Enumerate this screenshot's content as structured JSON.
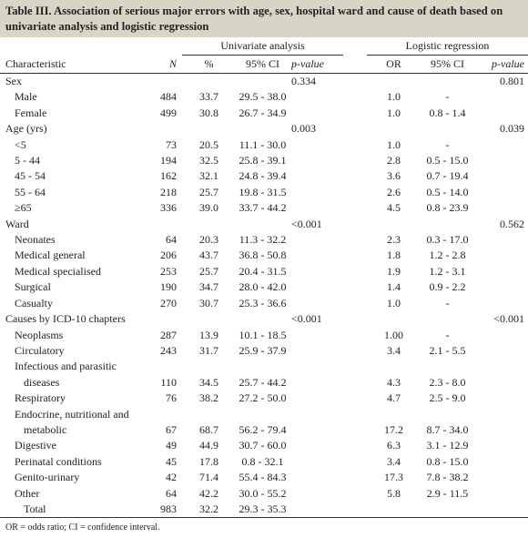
{
  "caption": "Table III. Association of serious major errors with age, sex, hospital ward and cause of death based on univariate analysis and logistic regression",
  "header": {
    "group_univariate": "Univariate analysis",
    "group_logistic": "Logistic regression",
    "characteristic": "Characteristic",
    "n": "N",
    "pct": "%",
    "ci_uni": "95% CI",
    "p_uni": "p-value",
    "or": "OR",
    "ci_log": "95% CI",
    "p_log": "p-value"
  },
  "rows": [
    {
      "label": "Sex",
      "n": "",
      "pct": "",
      "ci": "",
      "p": "0.334",
      "or": "",
      "ci2": "",
      "p2": "0.801"
    },
    {
      "label": "Male",
      "n": "484",
      "pct": "33.7",
      "ci": "29.5 - 38.0",
      "p": "",
      "or": "1.0",
      "ci2": "-",
      "p2": ""
    },
    {
      "label": "Female",
      "n": "499",
      "pct": "30.8",
      "ci": "26.7 - 34.9",
      "p": "",
      "or": "1.0",
      "ci2": "0.8 - 1.4",
      "p2": ""
    },
    {
      "label": "Age (yrs)",
      "n": "",
      "pct": "",
      "ci": "",
      "p": "0.003",
      "or": "",
      "ci2": "",
      "p2": "0.039"
    },
    {
      "label": "<5",
      "n": "73",
      "pct": "20.5",
      "ci": "11.1 - 30.0",
      "p": "",
      "or": "1.0",
      "ci2": "-",
      "p2": ""
    },
    {
      "label": "5 - 44",
      "n": "194",
      "pct": "32.5",
      "ci": "25.8 - 39.1",
      "p": "",
      "or": "2.8",
      "ci2": "0.5 - 15.0",
      "p2": ""
    },
    {
      "label": "45 - 54",
      "n": "162",
      "pct": "32.1",
      "ci": "24.8 - 39.4",
      "p": "",
      "or": "3.6",
      "ci2": "0.7 - 19.4",
      "p2": ""
    },
    {
      "label": "55 - 64",
      "n": "218",
      "pct": "25.7",
      "ci": "19.8 - 31.5",
      "p": "",
      "or": "2.6",
      "ci2": "0.5 - 14.0",
      "p2": ""
    },
    {
      "label": "≥65",
      "n": "336",
      "pct": "39.0",
      "ci": "33.7 - 44.2",
      "p": "",
      "or": "4.5",
      "ci2": "0.8 - 23.9",
      "p2": ""
    },
    {
      "label": "Ward",
      "n": "",
      "pct": "",
      "ci": "",
      "p": "<0.001",
      "or": "",
      "ci2": "",
      "p2": "0.562"
    },
    {
      "label": "Neonates",
      "n": "64",
      "pct": "20.3",
      "ci": "11.3 - 32.2",
      "p": "",
      "or": "2.3",
      "ci2": "0.3 - 17.0",
      "p2": ""
    },
    {
      "label": "Medical general",
      "n": "206",
      "pct": "43.7",
      "ci": "36.8 - 50.8",
      "p": "",
      "or": "1.8",
      "ci2": "1.2 - 2.8",
      "p2": ""
    },
    {
      "label": "Medical specialised",
      "n": "253",
      "pct": "25.7",
      "ci": "20.4 - 31.5",
      "p": "",
      "or": "1.9",
      "ci2": "1.2 - 3.1",
      "p2": ""
    },
    {
      "label": "Surgical",
      "n": "190",
      "pct": "34.7",
      "ci": "28.0 - 42.0",
      "p": "",
      "or": "1.4",
      "ci2": "0.9 - 2.2",
      "p2": ""
    },
    {
      "label": "Casualty",
      "n": "270",
      "pct": "30.7",
      "ci": "25.3 - 36.6",
      "p": "",
      "or": "1.0",
      "ci2": "-",
      "p2": ""
    },
    {
      "label": "Causes by ICD-10 chapters",
      "n": "",
      "pct": "",
      "ci": "",
      "p": "<0.001",
      "or": "",
      "ci2": "",
      "p2": "<0.001"
    },
    {
      "label": "Neoplasms",
      "n": "287",
      "pct": "13.9",
      "ci": "10.1 - 18.5",
      "p": "",
      "or": "1.00",
      "ci2": "-",
      "p2": ""
    },
    {
      "label": "Circulatory",
      "n": "243",
      "pct": "31.7",
      "ci": "25.9 - 37.9",
      "p": "",
      "or": "3.4",
      "ci2": "2.1 - 5.5",
      "p2": ""
    },
    {
      "label": "Infectious and parasitic",
      "n": "",
      "pct": "",
      "ci": "",
      "p": "",
      "or": "",
      "ci2": "",
      "p2": ""
    },
    {
      "label": "diseases",
      "n": "110",
      "pct": "34.5",
      "ci": "25.7 - 44.2",
      "p": "",
      "or": "4.3",
      "ci2": "2.3 - 8.0",
      "p2": ""
    },
    {
      "label": "Respiratory",
      "n": "76",
      "pct": "38.2",
      "ci": "27.2 - 50.0",
      "p": "",
      "or": "4.7",
      "ci2": "2.5 - 9.0",
      "p2": ""
    },
    {
      "label": "Endocrine, nutritional and",
      "n": "",
      "pct": "",
      "ci": "",
      "p": "",
      "or": "",
      "ci2": "",
      "p2": ""
    },
    {
      "label": "metabolic",
      "n": "67",
      "pct": "68.7",
      "ci": "56.2 - 79.4",
      "p": "",
      "or": "17.2",
      "ci2": "8.7 - 34.0",
      "p2": ""
    },
    {
      "label": "Digestive",
      "n": "49",
      "pct": "44.9",
      "ci": "30.7 - 60.0",
      "p": "",
      "or": "6.3",
      "ci2": "3.1 - 12.9",
      "p2": ""
    },
    {
      "label": "Perinatal conditions",
      "n": "45",
      "pct": "17.8",
      "ci": "0.8 - 32.1",
      "p": "",
      "or": "3.4",
      "ci2": "0.8 - 15.0",
      "p2": ""
    },
    {
      "label": "Genito-urinary",
      "n": "42",
      "pct": "71.4",
      "ci": "55.4 - 84.3",
      "p": "",
      "or": "17.3",
      "ci2": "7.8 - 38.2",
      "p2": ""
    },
    {
      "label": "Other",
      "n": "64",
      "pct": "42.2",
      "ci": "30.0 - 55.2",
      "p": "",
      "or": "5.8",
      "ci2": "2.9 - 11.5",
      "p2": ""
    },
    {
      "label": "Total",
      "n": "983",
      "pct": "32.2",
      "ci": "29.3 - 35.3",
      "p": "",
      "or": "",
      "ci2": "",
      "p2": ""
    }
  ],
  "footnote": "OR = odds ratio; CI = confidence interval."
}
